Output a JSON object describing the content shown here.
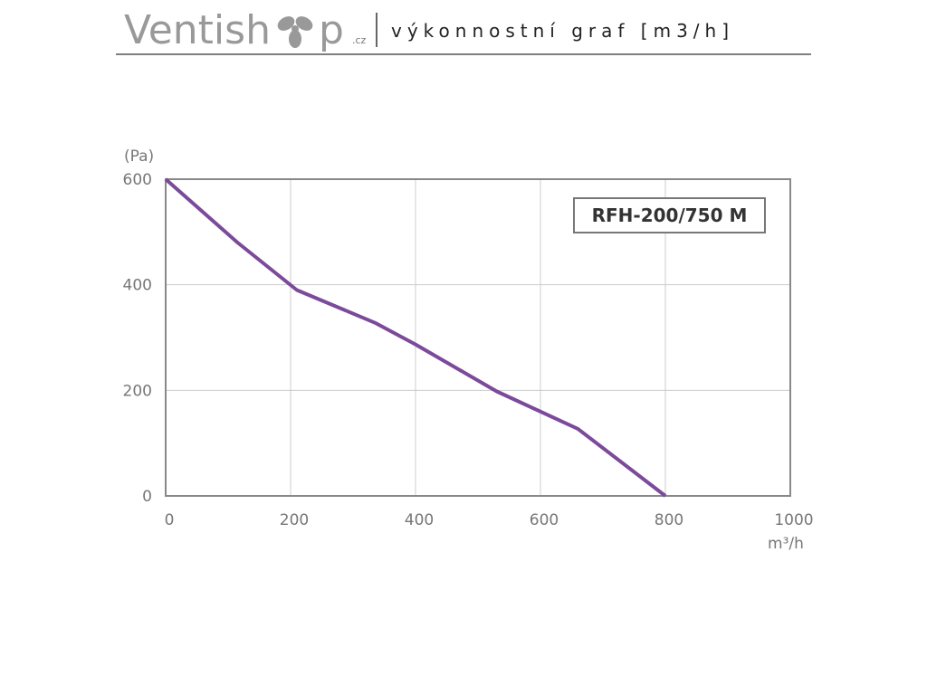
{
  "header": {
    "logo": "Ventish",
    "logo_end": "p",
    "domain": ".cz",
    "subtitle": "výkonnostní graf [m3/h]"
  },
  "chart_data": {
    "type": "line",
    "y_label": "(Pa)",
    "x_label": "m³/h",
    "annotation": "RFH-200/750 M",
    "x": [
      0,
      115,
      210,
      335,
      400,
      530,
      660,
      800
    ],
    "series": [
      {
        "color": "#7b4a9a",
        "values": [
          600,
          480,
          390,
          328,
          287,
          198,
          127,
          0
        ]
      }
    ],
    "xlim": [
      0,
      1000
    ],
    "xticks": [
      0,
      200,
      400,
      600,
      800,
      1000
    ],
    "ylim": [
      0,
      600
    ],
    "yticks": [
      0,
      200,
      400,
      600
    ],
    "grid": true
  }
}
